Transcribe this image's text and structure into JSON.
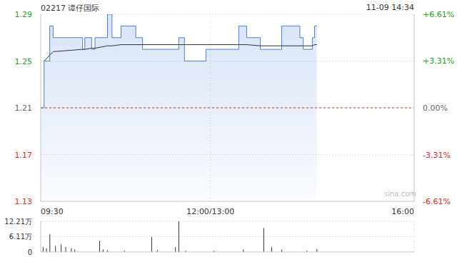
{
  "chart_data": [
    {
      "type": "line",
      "title": "02217 谭仔国际",
      "subtitle": "11-09 14:34",
      "annotation": "sina.com",
      "prev_close": 1.21,
      "x": [
        0,
        3,
        8,
        11,
        37,
        39,
        45,
        48,
        59,
        63,
        71,
        84,
        90,
        122,
        127,
        146,
        175,
        182,
        194,
        213,
        229,
        232,
        240,
        242,
        244
      ],
      "series": [
        {
          "type": "area",
          "color": "#4a7fd6",
          "line_style": "step",
          "values": [
            1.21,
            1.25,
            1.28,
            1.27,
            1.26,
            1.27,
            1.26,
            1.27,
            1.29,
            1.27,
            1.28,
            1.27,
            1.26,
            1.27,
            1.25,
            1.26,
            1.28,
            1.27,
            1.26,
            1.28,
            1.27,
            1.26,
            1.27,
            1.28,
            1.28
          ]
        },
        {
          "type": "line",
          "color": "#333333",
          "line_style": "solid",
          "values": [
            null,
            1.25,
            1.255,
            1.258,
            1.26,
            1.26,
            1.261,
            1.261,
            1.263,
            1.263,
            1.264,
            1.264,
            1.264,
            1.264,
            1.264,
            1.264,
            1.264,
            1.264,
            1.263,
            1.263,
            1.263,
            1.263,
            1.263,
            1.264,
            1.264
          ]
        }
      ],
      "xlim": [
        0,
        330
      ],
      "xticks": [
        {
          "value": 0,
          "label": "09:30"
        },
        {
          "value": 150,
          "label": "12:00/13:00"
        },
        {
          "value": 330,
          "label": "16:00"
        }
      ],
      "ylim": [
        1.13,
        1.29
      ],
      "yticks": [
        1.29,
        1.25,
        1.21,
        1.17,
        1.13
      ],
      "y2lim": [
        -6.61,
        6.61
      ],
      "y2ticks": [
        {
          "value": 6.61,
          "label": "+6.61%"
        },
        {
          "value": 3.31,
          "label": "+3.31%"
        },
        {
          "value": 0,
          "label": "0.00%"
        },
        {
          "value": -3.31,
          "label": "-3.31%"
        },
        {
          "value": -6.61,
          "label": "-6.61%"
        }
      ],
      "grid": true
    },
    {
      "type": "bar",
      "x": [
        2,
        5,
        8,
        13,
        18,
        22,
        27,
        30,
        52,
        55,
        59,
        74,
        98,
        103,
        119,
        122,
        128,
        153,
        179,
        197,
        204,
        213,
        235,
        244
      ],
      "values": [
        20000,
        15000,
        70000,
        25000,
        30000,
        20000,
        15000,
        10000,
        45000,
        10000,
        8000,
        5000,
        60000,
        8000,
        20000,
        122100,
        5000,
        5000,
        10000,
        95000,
        20000,
        10000,
        5000,
        12000
      ],
      "color": "#333333",
      "xlim": [
        0,
        330
      ],
      "ylim": [
        0,
        122100
      ],
      "yticks": [
        0,
        {
          "value": 61100,
          "label": "6.11万"
        },
        {
          "value": 122100,
          "label": "12.21万"
        }
      ],
      "tick_labels": "y",
      "grid": true
    }
  ]
}
